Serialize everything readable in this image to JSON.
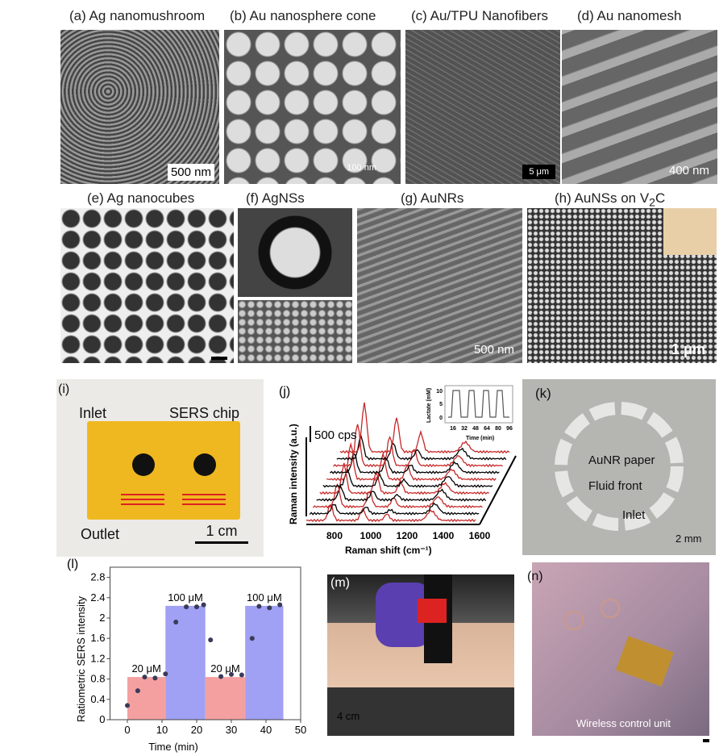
{
  "panels": {
    "a": {
      "title": "(a) Ag nanomushroom",
      "scale": "500 nm"
    },
    "b": {
      "title": "(b) Au nanosphere cone",
      "scale": "100 nm"
    },
    "c": {
      "title": "(c) Au/TPU Nanofibers",
      "scale": "5 μm"
    },
    "d": {
      "title": "(d) Au nanomesh",
      "scale": "400 nm"
    },
    "e": {
      "title": "(e) Ag nanocubes"
    },
    "f": {
      "title": "(f) AgNSs"
    },
    "g": {
      "title": "(g) AuNRs",
      "scale": "500 nm"
    },
    "h": {
      "title_main": "(h) AuNSs on V",
      "title_sub": "2",
      "title_end": "C",
      "scale": "1 μm"
    },
    "i": {
      "label": "(i)",
      "inlet": "Inlet",
      "chip": "SERS chip",
      "outlet": "Outlet",
      "scale": "1 cm"
    },
    "j": {
      "label": "(j)",
      "scalebar": "500 cps",
      "ylabel": "Raman intensity (a.u.)",
      "xlabel": "Raman shift (cm⁻¹)",
      "xticks": [
        "800",
        "1000",
        "1200",
        "1400",
        "1600"
      ],
      "inset": {
        "ylabel": "Lactate (mM)",
        "xlabel": "Time (min)",
        "yticks": [
          "0",
          "5",
          "10"
        ],
        "xticks": [
          "16",
          "32",
          "48",
          "64",
          "80",
          "96"
        ]
      }
    },
    "k": {
      "label": "(k)",
      "paper": "AuNR paper",
      "fluid": "Fluid front",
      "inlet": "Inlet",
      "scale": "2 mm"
    },
    "m": {
      "label": "(m)",
      "scale": "4 cm"
    },
    "n": {
      "label": "(n)",
      "caption": "Wireless control unit"
    }
  },
  "chart_data": {
    "type": "scatter",
    "label": "(l)",
    "xlabel": "Time (min)",
    "ylabel": "Ratiometric SERS intensity",
    "xlim": [
      -5,
      50
    ],
    "ylim": [
      0,
      3.0
    ],
    "xticks": [
      0,
      10,
      20,
      30,
      40,
      50
    ],
    "yticks": [
      0,
      0.4,
      0.8,
      1.2,
      1.6,
      2,
      2.4,
      2.8
    ],
    "bands": [
      {
        "x0": 0,
        "x1": 11,
        "value": 0.84,
        "label": "20 μM",
        "color": "#f4a0a0"
      },
      {
        "x0": 11,
        "x1": 22.5,
        "value": 2.24,
        "label": "100 μM",
        "color": "#a0a0f4"
      },
      {
        "x0": 22.5,
        "x1": 34,
        "value": 0.84,
        "label": "20 μM",
        "color": "#f4a0a0"
      },
      {
        "x0": 34,
        "x1": 45,
        "value": 2.24,
        "label": "100 μM",
        "color": "#a0a0f4"
      }
    ],
    "points": [
      [
        0,
        0.28
      ],
      [
        3,
        0.57
      ],
      [
        5,
        0.84
      ],
      [
        8,
        0.82
      ],
      [
        11,
        0.9
      ],
      [
        14,
        1.92
      ],
      [
        17,
        2.22
      ],
      [
        20,
        2.22
      ],
      [
        22,
        2.26
      ],
      [
        24,
        1.57
      ],
      [
        27,
        0.85
      ],
      [
        30,
        0.89
      ],
      [
        33,
        0.88
      ],
      [
        36,
        1.6
      ],
      [
        38,
        2.23
      ],
      [
        41,
        2.2
      ],
      [
        44,
        2.26
      ]
    ]
  }
}
